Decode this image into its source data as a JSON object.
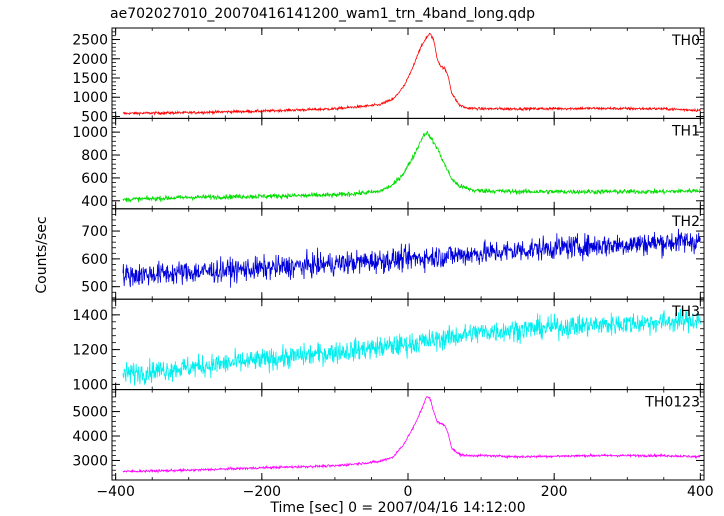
{
  "chart_data": {
    "type": "line",
    "title": "ae702027010_20070416141200_wam1_trn_4band_long.qdp",
    "xlabel": "Time [sec] 0 = 2007/04/16 14:12:00",
    "ylabel": "Counts/sec",
    "xlim": [
      -405,
      405
    ],
    "x_ticks": [
      -400,
      -200,
      0,
      200,
      400
    ],
    "x_tick_labels": [
      "−400",
      "−200",
      "0",
      "200",
      "400"
    ],
    "panels": [
      {
        "name": "TH0",
        "color": "#ff0000",
        "ylim": [
          450,
          2800
        ],
        "y_ticks": [
          500,
          1000,
          1500,
          2000,
          2500
        ],
        "noise": 25,
        "x": [
          -390,
          -300,
          -200,
          -100,
          -40,
          -20,
          -5,
          5,
          15,
          25,
          30,
          35,
          40,
          45,
          50,
          55,
          60,
          70,
          80,
          100,
          150,
          250,
          350,
          400
        ],
        "y": [
          580,
          600,
          640,
          700,
          800,
          950,
          1300,
          1700,
          2200,
          2550,
          2650,
          2500,
          2000,
          1800,
          1750,
          1550,
          1100,
          800,
          720,
          700,
          700,
          710,
          700,
          660
        ]
      },
      {
        "name": "TH1",
        "color": "#00dd00",
        "ylim": [
          330,
          1120
        ],
        "y_ticks": [
          400,
          600,
          800,
          1000
        ],
        "noise": 15,
        "x": [
          -390,
          -300,
          -200,
          -100,
          -40,
          -20,
          -5,
          10,
          20,
          25,
          30,
          40,
          50,
          60,
          70,
          90,
          150,
          250,
          350,
          400
        ],
        "y": [
          410,
          430,
          440,
          450,
          480,
          540,
          650,
          820,
          960,
          1000,
          960,
          860,
          720,
          590,
          530,
          490,
          480,
          480,
          480,
          490
        ]
      },
      {
        "name": "TH2",
        "color": "#0000dd",
        "ylim": [
          455,
          780
        ],
        "y_ticks": [
          500,
          600,
          700
        ],
        "noise": 30,
        "x": [
          -390,
          -200,
          0,
          200,
          400
        ],
        "y": [
          540,
          565,
          600,
          640,
          665
        ]
      },
      {
        "name": "TH3",
        "color": "#00eeee",
        "ylim": [
          970,
          1490
        ],
        "y_ticks": [
          1000,
          1200,
          1400
        ],
        "noise": 45,
        "x": [
          -390,
          -200,
          0,
          100,
          200,
          400
        ],
        "y": [
          1060,
          1140,
          1230,
          1300,
          1330,
          1370
        ]
      },
      {
        "name": "TH0123",
        "color": "#ff00ff",
        "ylim": [
          2200,
          5900
        ],
        "y_ticks": [
          3000,
          4000,
          5000
        ],
        "noise": 35,
        "x": [
          -390,
          -300,
          -200,
          -100,
          -40,
          -20,
          -5,
          10,
          20,
          25,
          30,
          35,
          40,
          45,
          50,
          55,
          60,
          70,
          80,
          100,
          150,
          250,
          350,
          400
        ],
        "y": [
          2550,
          2600,
          2700,
          2780,
          2950,
          3150,
          3700,
          4500,
          5200,
          5600,
          5550,
          5000,
          4600,
          4500,
          4450,
          4100,
          3500,
          3250,
          3200,
          3200,
          3150,
          3200,
          3200,
          3150
        ]
      }
    ]
  }
}
